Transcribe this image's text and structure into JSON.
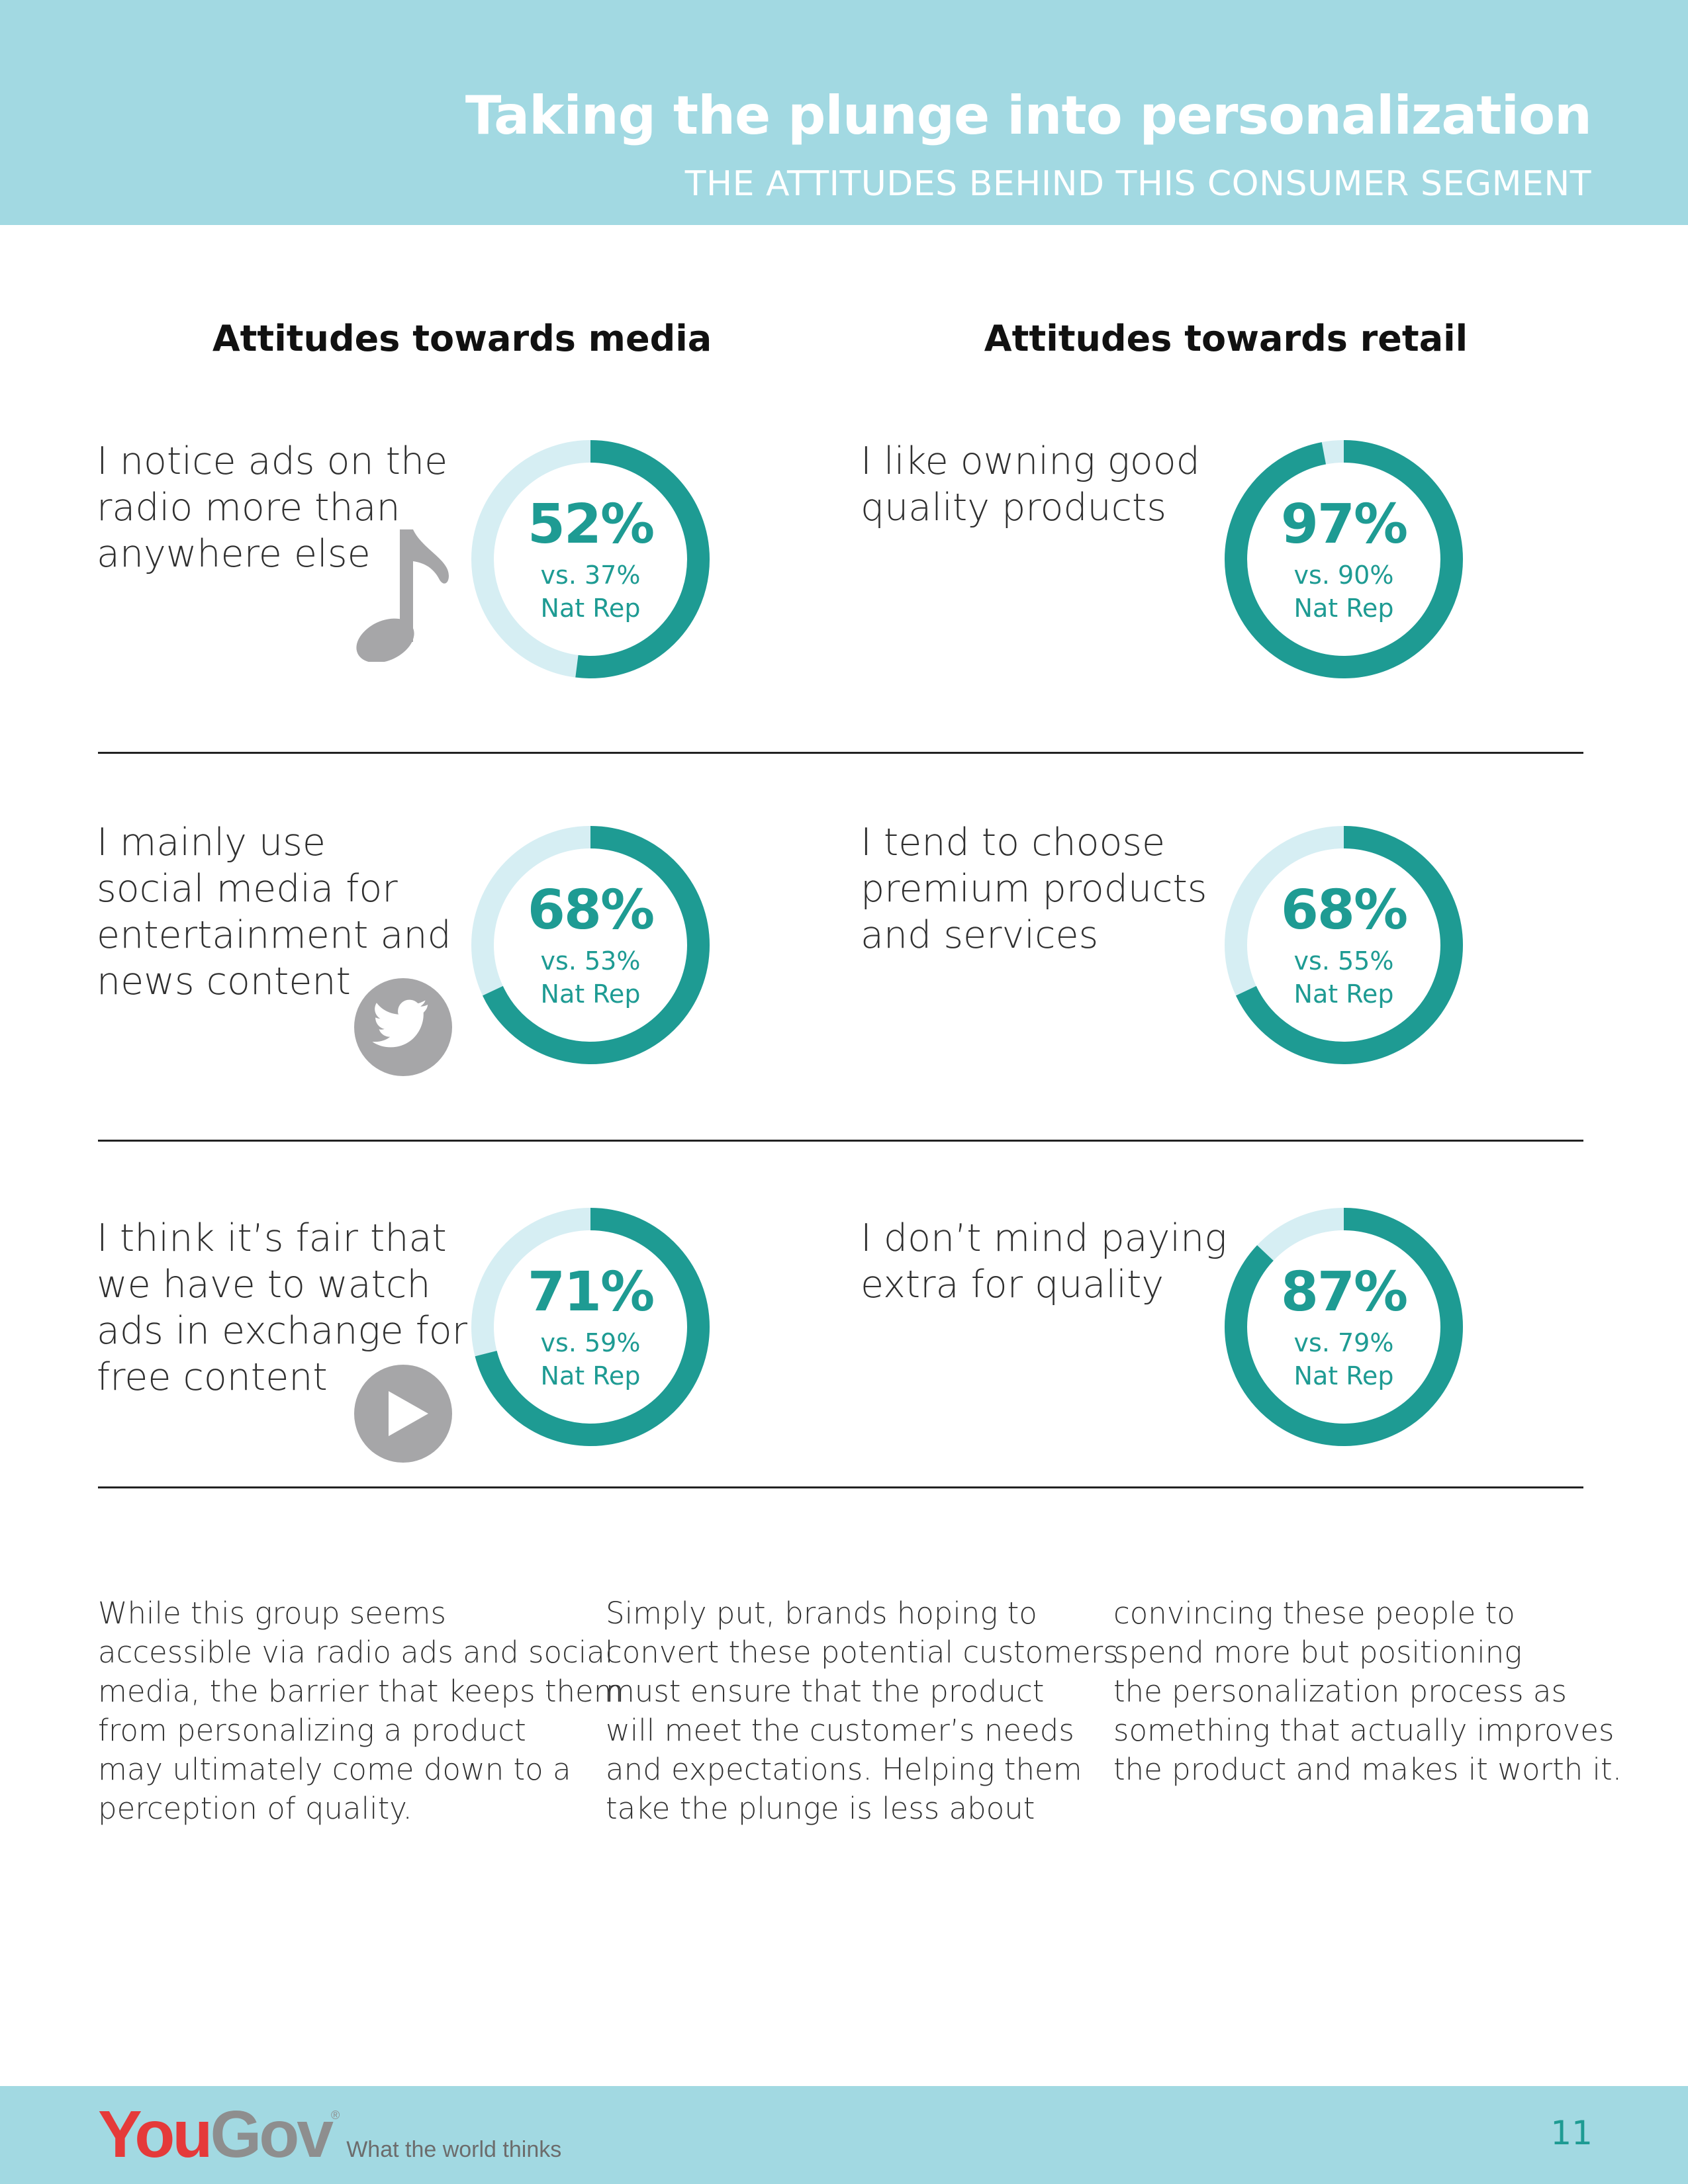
{
  "header": {
    "title": "Taking the plunge into  personalization",
    "subtitle": "THE ATTITUDES BEHIND THIS CONSUMER SEGMENT"
  },
  "columns": {
    "media_heading": "Attitudes towards media",
    "retail_heading": "Attitudes towards retail"
  },
  "colors": {
    "accent": "#1e9b93",
    "track": "#d6eef3",
    "header_bg": "#a2d9e2",
    "icon_gray": "#a6a6a8"
  },
  "media": [
    {
      "lines": [
        "I notice ads on the",
        "radio more than",
        "anywhere else"
      ],
      "percent_label": "52%",
      "percent": 52,
      "vs": "vs. 37%",
      "nat": "Nat Rep",
      "icon": "music-note-icon"
    },
    {
      "lines": [
        "I mainly use",
        "social media for",
        "entertainment and",
        "news content"
      ],
      "percent_label": "68%",
      "percent": 68,
      "vs": "vs. 53%",
      "nat": "Nat Rep",
      "icon": "twitter-bird-icon"
    },
    {
      "lines": [
        "I think it’s fair that",
        "we have to watch",
        "ads in exchange for",
        "free content"
      ],
      "percent_label": "71%",
      "percent": 71,
      "vs": "vs. 59%",
      "nat": "Nat Rep",
      "icon": "play-icon"
    }
  ],
  "retail": [
    {
      "lines": [
        "I like owning good",
        "quality products"
      ],
      "percent_label": "97%",
      "percent": 97,
      "vs": "vs. 90%",
      "nat": "Nat Rep"
    },
    {
      "lines": [
        "I tend to choose",
        "premium products",
        "and services"
      ],
      "percent_label": "68%",
      "percent": 68,
      "vs": "vs. 55%",
      "nat": "Nat Rep"
    },
    {
      "lines": [
        " I don’t mind paying",
        "extra for quality"
      ],
      "percent_label": "87%",
      "percent": 87,
      "vs": "vs. 79%",
      "nat": "Nat Rep"
    }
  ],
  "paragraphs": [
    [
      "While this group seems",
      "accessible via radio ads and social",
      "media, the barrier that keeps them",
      "from personalizing a product",
      "may ultimately come down to a",
      "perception of quality."
    ],
    [
      "Simply put, brands hoping to",
      "convert these potential customers",
      "must ensure that the product",
      "will meet the customer’s needs",
      "and expectations. Helping them",
      "take the plunge is less about"
    ],
    [
      "convincing these people to",
      "spend more but positioning",
      "the personalization process as",
      "something that actually improves",
      "the product and makes it worth it."
    ]
  ],
  "footer": {
    "logo_you": "You",
    "logo_gov": "Gov",
    "logo_reg": "®",
    "tagline": "What the world thinks",
    "page_number": "11"
  }
}
